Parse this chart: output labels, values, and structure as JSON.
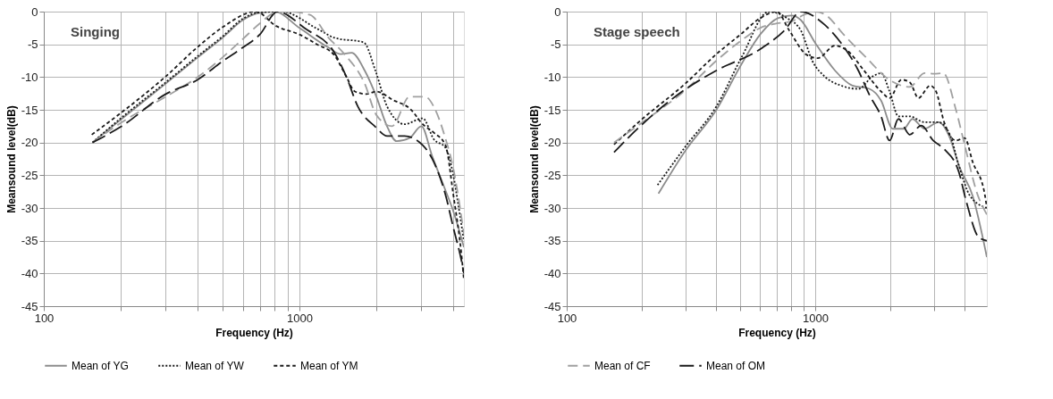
{
  "chart_data": [
    {
      "type": "line",
      "annotations": [
        "Singing"
      ],
      "xlabel": "Frequency (Hz)",
      "ylabel": "Meansound level(dB)",
      "log": "x",
      "grid": true,
      "legend": "bottom",
      "xlim": [
        100,
        4400
      ],
      "xticks": [
        100,
        {
          "value": 200,
          "label": null
        },
        {
          "value": 300,
          "label": null
        },
        {
          "value": 400,
          "label": null
        },
        {
          "value": 500,
          "label": null
        },
        {
          "value": 600,
          "label": null
        },
        {
          "value": 700,
          "label": null
        },
        {
          "value": 800,
          "label": null
        },
        {
          "value": 900,
          "label": null
        },
        1000,
        {
          "value": 2000,
          "label": null
        },
        {
          "value": 3000,
          "label": null
        },
        {
          "value": 4000,
          "label": null
        }
      ],
      "ylim": [
        -45,
        0
      ],
      "yticks": [
        0,
        -5,
        -10,
        -15,
        -20,
        -25,
        -30,
        -35,
        -40,
        -45
      ],
      "series": [
        {
          "name": "Mean of YG",
          "color": "#8c8c8c",
          "line_style": "solid",
          "x": [
            155,
            200,
            300,
            400,
            500,
            600,
            700,
            800,
            1000,
            1300,
            1450,
            1600,
            1800,
            2000,
            2200,
            2400,
            2700,
            3000,
            3300,
            3700,
            4000,
            4400
          ],
          "values": [
            -20,
            -16.5,
            -11,
            -7,
            -4,
            -1.3,
            -0.2,
            0,
            -2.5,
            -5.5,
            -6.5,
            -6.3,
            -9,
            -13,
            -17.5,
            -19.8,
            -19.3,
            -17.5,
            -22,
            -27,
            -30.5,
            -36
          ]
        },
        {
          "name": "Mean of YW",
          "color": "#1a1a1a",
          "line_style": "dotted",
          "x": [
            155,
            200,
            300,
            400,
            500,
            600,
            700,
            853,
            1171,
            1372,
            1784,
            1982,
            2203,
            2578,
            3035,
            3356,
            3727,
            4000,
            4200,
            4400
          ],
          "values": [
            -20,
            -16.3,
            -10.8,
            -6.8,
            -3.8,
            -1.1,
            -0.1,
            0,
            -2.6,
            -4,
            -4.7,
            -9,
            -14.5,
            -17.2,
            -16.3,
            -19.5,
            -20.8,
            -25,
            -30,
            -35
          ]
        },
        {
          "name": "Mean of YM",
          "color": "#1a1a1a",
          "line_style": "dashed",
          "x": [
            154,
            200,
            300,
            400,
            500,
            674,
            811,
            1000,
            1171,
            1372,
            1524,
            1648,
            1832,
            2000,
            2321,
            2718,
            3035,
            3356,
            3727,
            4000,
            4300,
            4400
          ],
          "values": [
            -18.8,
            -15.5,
            -9.9,
            -5.4,
            -2.4,
            0,
            -2.2,
            -3.5,
            -5,
            -6.7,
            -9.9,
            -12.2,
            -12.6,
            -12.2,
            -13.5,
            -14.9,
            -17.2,
            -18.5,
            -20.4,
            -28,
            -37,
            -41
          ]
        },
        {
          "color": "#a0a0a0",
          "line_style": "dashed",
          "x": [
            155,
            200,
            300,
            400,
            500,
            600,
            700,
            800,
            900,
            1100,
            1300,
            1500,
            1800,
            2000,
            2300,
            2700,
            3100,
            3400,
            3700,
            4000,
            4400
          ],
          "values": [
            -20,
            -17,
            -13,
            -10,
            -7,
            -4.2,
            -1.8,
            -0.2,
            0,
            -0.5,
            -4,
            -6.5,
            -11,
            -15.8,
            -17.5,
            -13,
            -13,
            -15,
            -19,
            -24,
            -34
          ]
        },
        {
          "color": "#1a1a1a",
          "line_style": "dashed",
          "x": [
            155,
            200,
            300,
            400,
            500,
            600,
            700,
            820,
            1054,
            1372,
            1524,
            1693,
            1982,
            2203,
            2578,
            3035,
            3356,
            3727,
            4000,
            4300,
            4400
          ],
          "values": [
            -20,
            -17.6,
            -12.6,
            -10.4,
            -7.6,
            -5.5,
            -3.5,
            0,
            -2.6,
            -6.3,
            -9.9,
            -14.5,
            -17.6,
            -19,
            -19,
            -20.4,
            -23,
            -28,
            -33,
            -38,
            -40
          ]
        }
      ]
    },
    {
      "type": "line",
      "annotations": [
        "Stage speech"
      ],
      "xlabel": "Frequency (Hz)",
      "ylabel": "Meansound level(dB)",
      "log": "x",
      "grid": true,
      "legend": "bottom",
      "xlim": [
        100,
        4900
      ],
      "xticks": [
        100,
        {
          "value": 200,
          "label": null
        },
        {
          "value": 300,
          "label": null
        },
        {
          "value": 400,
          "label": null
        },
        {
          "value": 500,
          "label": null
        },
        {
          "value": 600,
          "label": null
        },
        {
          "value": 700,
          "label": null
        },
        {
          "value": 800,
          "label": null
        },
        {
          "value": 900,
          "label": null
        },
        1000,
        {
          "value": 2000,
          "label": null
        },
        {
          "value": 3000,
          "label": null
        },
        {
          "value": 4000,
          "label": null
        }
      ],
      "ylim": [
        -45,
        0
      ],
      "yticks": [
        0,
        -5,
        -10,
        -15,
        -20,
        -25,
        -30,
        -35,
        -40,
        -45
      ],
      "series": [
        {
          "color": "#8c8c8c",
          "line_style": "solid",
          "x": [
            234,
            302,
            400,
            505,
            603,
            707,
            803,
            875,
            1000,
            1200,
            1410,
            1650,
            1840,
            2050,
            2270,
            2460,
            2750,
            3130,
            3480,
            3780,
            4300,
            4900
          ],
          "values": [
            -27.8,
            -21.1,
            -15,
            -8,
            -3.4,
            -1,
            -0.6,
            -1.3,
            -4.8,
            -9,
            -11.3,
            -11.8,
            -13.6,
            -17.9,
            -17.9,
            -16.4,
            -17.9,
            -16.9,
            -19.3,
            -23.5,
            -28.2,
            -37.5
          ]
        },
        {
          "color": "#1a1a1a",
          "line_style": "dotted",
          "x": [
            232,
            302,
            400,
            505,
            650,
            770,
            875,
            975,
            1090,
            1270,
            1490,
            1700,
            1840,
            1990,
            2160,
            2400,
            2750,
            3130,
            3480,
            3780,
            4200,
            4900
          ],
          "values": [
            -26.5,
            -20.5,
            -14.5,
            -7,
            0,
            -1,
            -2.9,
            -7.6,
            -9.9,
            -11.3,
            -11.8,
            -9.9,
            -9.4,
            -12.2,
            -16,
            -16,
            -16.9,
            -16.9,
            -18.8,
            -23.5,
            -28.2,
            -30
          ]
        },
        {
          "color": "#1a1a1a",
          "line_style": "dashed",
          "x": [
            155,
            200,
            300,
            400,
            500,
            600,
            700,
            786,
            923,
            1025,
            1200,
            1340,
            1570,
            1840,
            1990,
            2220,
            2400,
            2600,
            2900,
            3060,
            3300,
            3680,
            3990,
            4300,
            4800,
            4900
          ],
          "values": [
            -20.3,
            -16.5,
            -11,
            -6.5,
            -3.5,
            -1,
            0,
            -2.9,
            -6.6,
            -7.1,
            -5.2,
            -5.9,
            -9,
            -12.2,
            -13.2,
            -10.4,
            -10.8,
            -13.2,
            -11.3,
            -12.2,
            -16.9,
            -19.7,
            -19.3,
            -23,
            -27.8,
            -30
          ]
        },
        {
          "name": "Mean of CF",
          "color": "#a0a0a0",
          "line_style": "dashed",
          "x": [
            155,
            200,
            300,
            400,
            500,
            600,
            700,
            800,
            900,
            1000,
            1100,
            1300,
            1600,
            2000,
            2400,
            2750,
            3000,
            3270,
            3680,
            3980,
            4500,
            4900
          ],
          "values": [
            -20,
            -17,
            -12,
            -7.5,
            -4.5,
            -2.5,
            -1.8,
            -1.5,
            -0.5,
            0,
            -0.5,
            -3.5,
            -7,
            -10.5,
            -11.5,
            -9.4,
            -9.5,
            -9.4,
            -15,
            -20.2,
            -28,
            -31
          ]
        },
        {
          "name": "Mean of OM",
          "color": "#1a1a1a",
          "line_style": "dashed",
          "x": [
            155,
            182,
            302,
            400,
            603,
            750,
            875,
            1090,
            1270,
            1490,
            1650,
            1840,
            1990,
            2160,
            2400,
            2670,
            2980,
            3300,
            3780,
            4050,
            4550,
            4900
          ],
          "values": [
            -21.5,
            -18.8,
            -11.8,
            -9,
            -5.7,
            -2.9,
            0,
            -2,
            -4.8,
            -9,
            -12.7,
            -16,
            -19.7,
            -16.4,
            -18.8,
            -17.4,
            -19.7,
            -21,
            -24.5,
            -29,
            -34.5,
            -35
          ]
        }
      ]
    }
  ]
}
